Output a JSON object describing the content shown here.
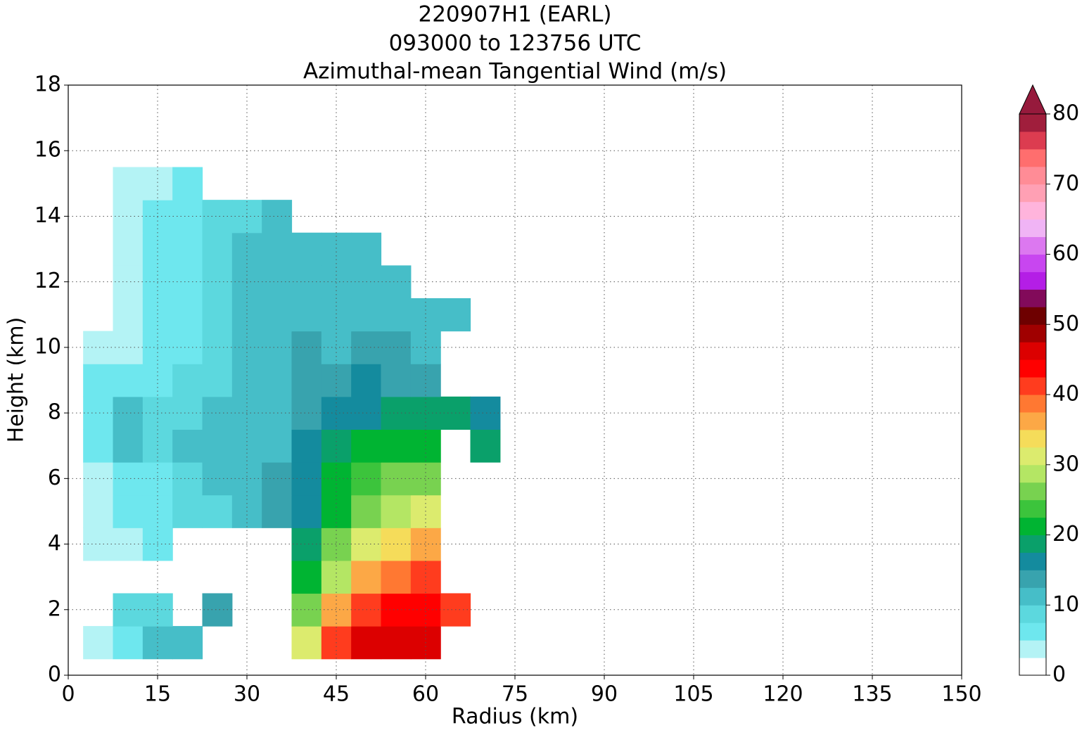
{
  "chart_data": {
    "type": "contour",
    "title": [
      "220907H1 (EARL)",
      "093000 to 123756 UTC",
      "Azimuthal-mean Tangential Wind (m/s)"
    ],
    "x_label": "Radius (km)",
    "y_label": "Height (km)",
    "xlim": [
      0,
      150
    ],
    "xticks": [
      0,
      15,
      30,
      45,
      60,
      75,
      90,
      105,
      120,
      135,
      150
    ],
    "ylim": [
      0,
      18
    ],
    "yticks": [
      0,
      2,
      4,
      6,
      8,
      10,
      12,
      14,
      16,
      18
    ],
    "grid": true,
    "x": [
      5,
      10,
      15,
      20,
      25,
      30,
      35,
      40,
      45,
      50,
      55,
      60,
      65,
      70
    ],
    "y": [
      1,
      2,
      3,
      4,
      5,
      6,
      7,
      8,
      9,
      10,
      11,
      12,
      13,
      14,
      15
    ],
    "z": [
      [
        3,
        7,
        10,
        12,
        null,
        null,
        null,
        30,
        42,
        46,
        46,
        45,
        null,
        null
      ],
      [
        null,
        9,
        9,
        null,
        13,
        null,
        null,
        25,
        35,
        42,
        43,
        43,
        40,
        null
      ],
      [
        null,
        null,
        null,
        null,
        null,
        null,
        null,
        22,
        28,
        35,
        38,
        40,
        null,
        null
      ],
      [
        3,
        4,
        6,
        null,
        null,
        null,
        null,
        19,
        25,
        30,
        34,
        35,
        null,
        null
      ],
      [
        3,
        5,
        6,
        8,
        9,
        10,
        13,
        16,
        21,
        26,
        29,
        30,
        null,
        null
      ],
      [
        3,
        6,
        7,
        9,
        10,
        11,
        13,
        16,
        20,
        24,
        26,
        25,
        null,
        null
      ],
      [
        6,
        11,
        9,
        10,
        10,
        11,
        12,
        15,
        18,
        21,
        22,
        21,
        null,
        19
      ],
      [
        6,
        11,
        8,
        9,
        10,
        11,
        12,
        14,
        15,
        17,
        18,
        18,
        19,
        17
      ],
      [
        5,
        7,
        7,
        8,
        9,
        10,
        12,
        13,
        13,
        15,
        14,
        14,
        null,
        null
      ],
      [
        3,
        4,
        6,
        7,
        9,
        10,
        12,
        13,
        12,
        13,
        13,
        12,
        null,
        null
      ],
      [
        null,
        3,
        6,
        7,
        9,
        10,
        11,
        12,
        12,
        12,
        12,
        12,
        10,
        null
      ],
      [
        null,
        3,
        6,
        7,
        9,
        10,
        11,
        12,
        12,
        12,
        12,
        null,
        null,
        null
      ],
      [
        null,
        3,
        5,
        7,
        8,
        10,
        10,
        11,
        12,
        12,
        null,
        null,
        null,
        null
      ],
      [
        null,
        3,
        5,
        6,
        8,
        9,
        10,
        null,
        null,
        null,
        null,
        null,
        null,
        null
      ],
      [
        null,
        3,
        3,
        5,
        null,
        null,
        null,
        null,
        null,
        null,
        null,
        null,
        null,
        null
      ]
    ],
    "levels": [
      0,
      2.5,
      5,
      7.5,
      10,
      12.5,
      15,
      17.5,
      20,
      22.5,
      25,
      27.5,
      30,
      32.5,
      35,
      37.5,
      40,
      42.5,
      45,
      47.5,
      50,
      52.5,
      55,
      57.5,
      60,
      62.5,
      65,
      67.5,
      70,
      72.5,
      75,
      77.5,
      80
    ],
    "colors": [
      "#ffffff",
      "#b4f3f5",
      "#6ee7ee",
      "#5cd8de",
      "#46bec8",
      "#38a3ae",
      "#148b9e",
      "#0aa06a",
      "#00b432",
      "#3cc43c",
      "#78d250",
      "#b4e664",
      "#dceb6e",
      "#f5dc5a",
      "#fca846",
      "#ff7832",
      "#ff3c1e",
      "#ff0000",
      "#dc0000",
      "#a00000",
      "#6e0000",
      "#820a5a",
      "#b41ee6",
      "#c846f0",
      "#dc78f0",
      "#f0b4f5",
      "#ffb4dc",
      "#ffa0b4",
      "#ff8c96",
      "#ff6e6e",
      "#dc3c50",
      "#a01e3c"
    ],
    "extend_color": "#961a3c",
    "colorbar_ticks": [
      0,
      10,
      20,
      30,
      40,
      50,
      60,
      70,
      80
    ]
  }
}
